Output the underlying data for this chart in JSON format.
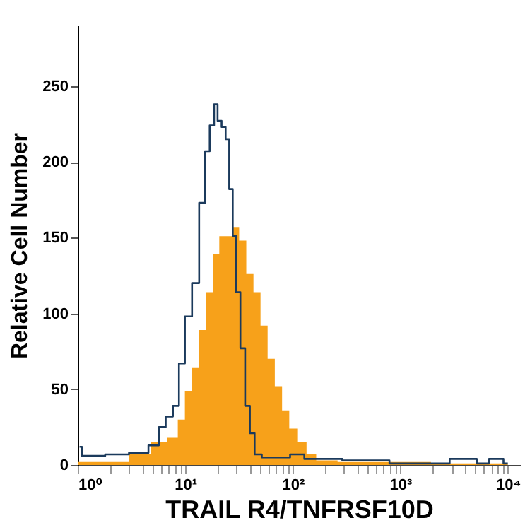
{
  "chart_data": {
    "type": "step",
    "xlabel": "TRAIL R4/TNFRSF10D",
    "ylabel": "Relative Cell Number",
    "log": "x",
    "grid": false,
    "xlim": [
      1,
      13000
    ],
    "ylim": [
      0,
      290
    ],
    "xticks": [
      {
        "value": 1,
        "label": "10⁰"
      },
      {
        "value": 2,
        "label": null
      },
      {
        "value": 3,
        "label": null
      },
      {
        "value": 4,
        "label": null
      },
      {
        "value": 5,
        "label": null
      },
      {
        "value": 6,
        "label": null
      },
      {
        "value": 7,
        "label": null
      },
      {
        "value": 8,
        "label": null
      },
      {
        "value": 9,
        "label": null
      },
      {
        "value": 10,
        "label": "10¹"
      },
      {
        "value": 20,
        "label": null
      },
      {
        "value": 30,
        "label": null
      },
      {
        "value": 40,
        "label": null
      },
      {
        "value": 50,
        "label": null
      },
      {
        "value": 60,
        "label": null
      },
      {
        "value": 70,
        "label": null
      },
      {
        "value": 80,
        "label": null
      },
      {
        "value": 90,
        "label": null
      },
      {
        "value": 100,
        "label": "10²"
      },
      {
        "value": 200,
        "label": null
      },
      {
        "value": 300,
        "label": null
      },
      {
        "value": 400,
        "label": null
      },
      {
        "value": 500,
        "label": null
      },
      {
        "value": 600,
        "label": null
      },
      {
        "value": 700,
        "label": null
      },
      {
        "value": 800,
        "label": null
      },
      {
        "value": 900,
        "label": null
      },
      {
        "value": 1000,
        "label": "10³"
      },
      {
        "value": 2000,
        "label": null
      },
      {
        "value": 3000,
        "label": null
      },
      {
        "value": 4000,
        "label": null
      },
      {
        "value": 5000,
        "label": null
      },
      {
        "value": 6000,
        "label": null
      },
      {
        "value": 7000,
        "label": null
      },
      {
        "value": 8000,
        "label": null
      },
      {
        "value": 9000,
        "label": null
      },
      {
        "value": 10000,
        "label": "10⁴"
      }
    ],
    "yticks": [
      0,
      50,
      100,
      150,
      200,
      250
    ],
    "series": [
      {
        "type": "area",
        "color": "#f7a11a",
        "x": [
          1,
          2.3,
          3.9,
          5.8,
          7.9,
          9.2,
          10.7,
          12.5,
          14.5,
          16.9,
          19.7,
          21.8,
          25.3,
          29.4,
          34.2,
          39.9,
          46.5,
          54,
          63,
          73.5,
          86,
          100,
          121,
          149,
          183,
          372,
          10000
        ],
        "values": [
          2,
          2,
          7,
          15,
          18,
          30,
          49,
          64,
          89,
          114,
          139,
          151,
          151,
          157,
          148,
          126,
          114,
          92,
          70,
          52,
          36,
          24,
          15,
          7,
          3,
          2,
          1
        ]
      },
      {
        "color": "#1b3a5c",
        "x": [
          1.04,
          1.15,
          1.41,
          2.3,
          3.9,
          5.3,
          6.1,
          7.1,
          8.3,
          9.2,
          10.7,
          12.5,
          14.5,
          16,
          17.8,
          19.3,
          20.7,
          22.9,
          24.6,
          26.7,
          28.6,
          31,
          34.2,
          38,
          41.9,
          46.5,
          57,
          81,
          110,
          149,
          224,
          372,
          1690,
          4900,
          5400,
          8300,
          10000
        ],
        "values": [
          12,
          6,
          6,
          7,
          8,
          13,
          25,
          32,
          39,
          67,
          98,
          120,
          173,
          207,
          224,
          238,
          227,
          223,
          215,
          182,
          151,
          114,
          77,
          39,
          21,
          7,
          5,
          5,
          7,
          4,
          4,
          3,
          1,
          4,
          1,
          4,
          1
        ]
      }
    ]
  }
}
